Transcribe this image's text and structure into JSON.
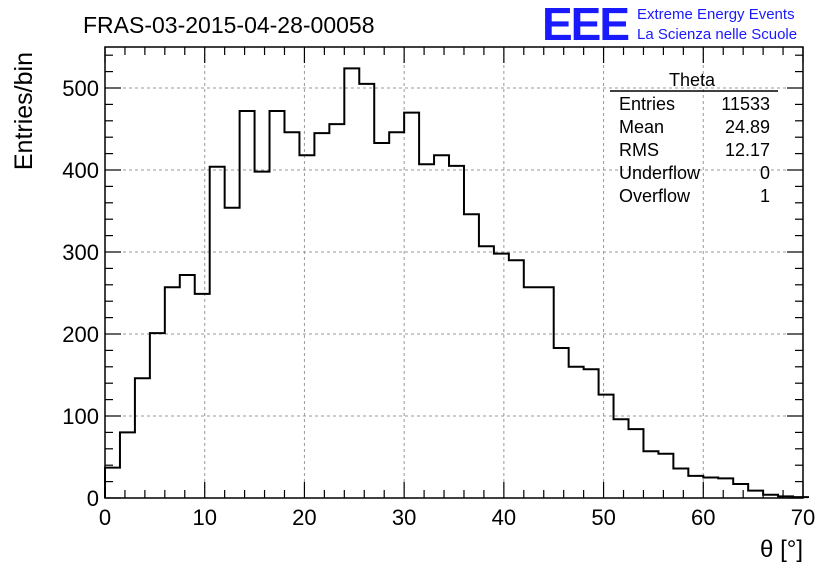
{
  "page_title": "FRAS-03-2015-04-28-00058",
  "logo": {
    "letters": "EEE",
    "line1": "Extreme Energy Events",
    "line2": "La Scienza nelle Scuole",
    "color": "#1a1aff"
  },
  "stats": {
    "name": "Theta",
    "rows": [
      {
        "label": "Entries",
        "value": "11533"
      },
      {
        "label": "Mean",
        "value": "24.89"
      },
      {
        "label": "RMS",
        "value": "12.17"
      },
      {
        "label": "Underflow",
        "value": "0"
      },
      {
        "label": "Overflow",
        "value": "1"
      }
    ]
  },
  "chart_data": {
    "type": "histogram",
    "title": "FRAS-03-2015-04-28-00058",
    "xlabel": "θ [°]",
    "ylabel": "Entries/bin",
    "xlim": [
      0,
      70
    ],
    "ylim": [
      0,
      550
    ],
    "grid": true,
    "bin_width": 1.5,
    "bin_edges_start": 0,
    "x_ticks": [
      0,
      10,
      20,
      30,
      40,
      50,
      60,
      70
    ],
    "y_ticks": [
      0,
      100,
      200,
      300,
      400,
      500
    ],
    "values": [
      37,
      80,
      146,
      201,
      257,
      272,
      249,
      404,
      354,
      472,
      398,
      472,
      446,
      418,
      445,
      456,
      524,
      505,
      433,
      446,
      470,
      407,
      418,
      405,
      346,
      307,
      298,
      290,
      257,
      257,
      183,
      160,
      157,
      126,
      96,
      84,
      57,
      54,
      36,
      27,
      25,
      24,
      17,
      9,
      4,
      2,
      1
    ],
    "line_color": "#000000"
  }
}
